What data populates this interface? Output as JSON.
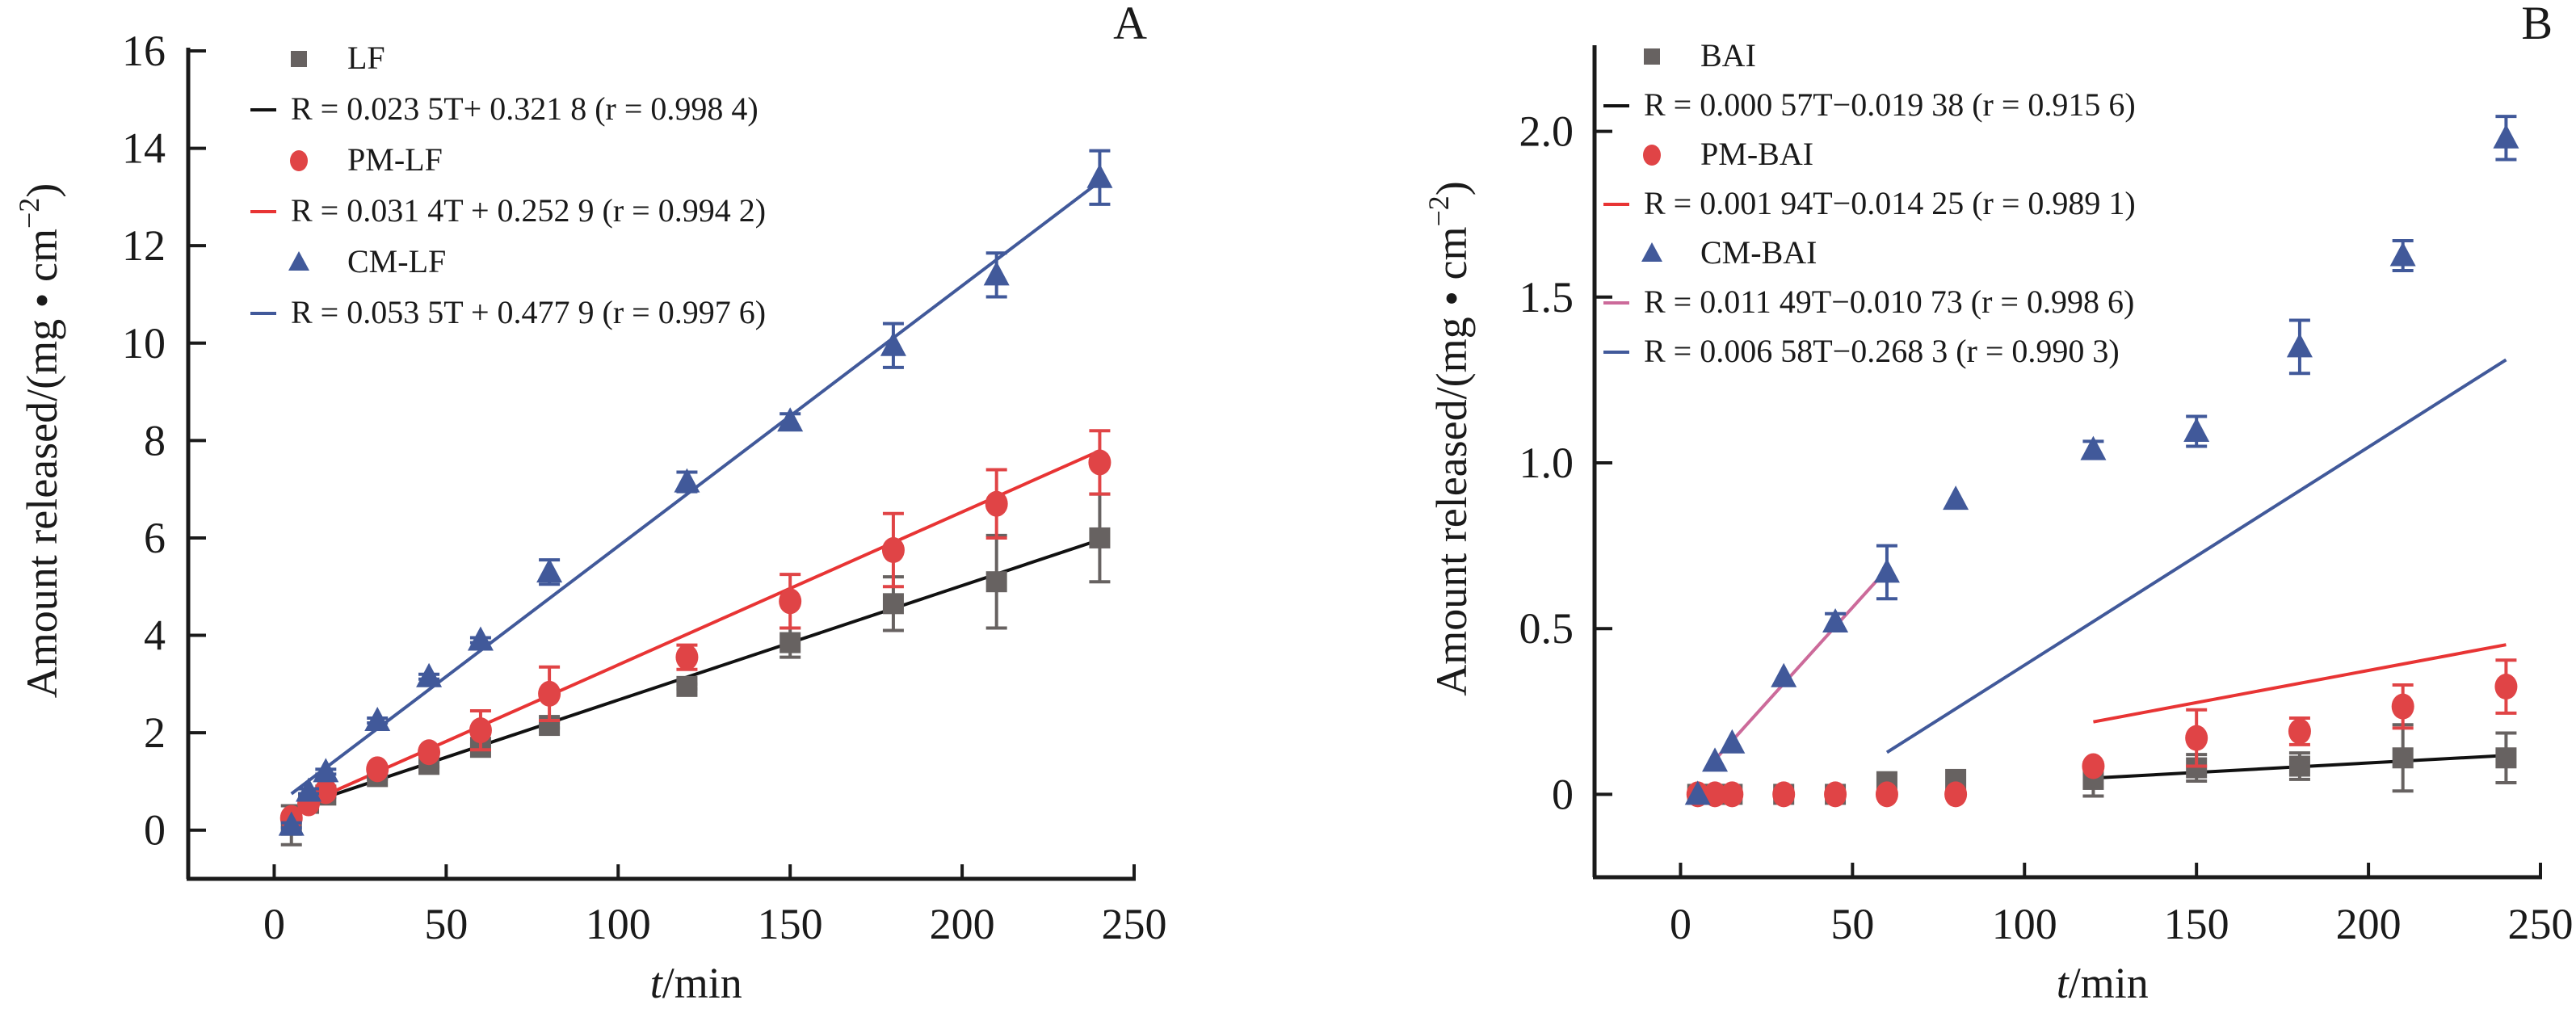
{
  "chart_data": [
    {
      "panel_label": "A",
      "type": "scatter",
      "xlabel_italic": "t",
      "xlabel_rest": "/min",
      "ylabel": "Amount released/(mg • cm",
      "ylabel_sup": "−2",
      "ylabel_close": ")",
      "xlim": [
        -25,
        250
      ],
      "ylim": [
        -1,
        16
      ],
      "xticks": [
        0,
        50,
        100,
        150,
        200,
        250
      ],
      "yticks": [
        0,
        2,
        4,
        6,
        8,
        10,
        12,
        14,
        16
      ],
      "ytick_labels": [
        "0",
        "2",
        "4",
        "6",
        "8",
        "10",
        "12",
        "14",
        "16"
      ],
      "legend_position": "top-left",
      "legend": [
        {
          "kind": "marker",
          "marker": "square",
          "color": "#676261",
          "label": "LF"
        },
        {
          "kind": "line",
          "color": "#111111",
          "label": "R = 0.023 5T+ 0.321 8  (r = 0.998 4)"
        },
        {
          "kind": "marker",
          "marker": "circle",
          "color": "#e04446",
          "label": "PM-LF"
        },
        {
          "kind": "line",
          "color": "#e83434",
          "label": "R = 0.031 4T + 0.252 9 (r = 0.994 2)"
        },
        {
          "kind": "marker",
          "marker": "triangle",
          "color": "#41599a",
          "label": "CM-LF"
        },
        {
          "kind": "line",
          "color": "#41599a",
          "label": "R = 0.053 5T + 0.477 9 (r = 0.997 6)"
        }
      ],
      "series": [
        {
          "name": "LF",
          "marker": "square",
          "color": "#676261",
          "x": [
            5,
            10,
            15,
            30,
            45,
            60,
            80,
            120,
            150,
            180,
            210,
            240
          ],
          "y": [
            0.1,
            0.55,
            0.72,
            1.1,
            1.35,
            1.7,
            2.15,
            2.95,
            3.85,
            4.65,
            5.1,
            6.0
          ],
          "err": [
            0.4,
            0.05,
            0.05,
            0.05,
            0.05,
            0.05,
            0.05,
            0.05,
            0.3,
            0.55,
            0.95,
            0.9
          ]
        },
        {
          "name": "PM-LF",
          "marker": "circle",
          "color": "#e04446",
          "x": [
            5,
            10,
            15,
            30,
            45,
            60,
            80,
            120,
            150,
            180,
            210,
            240
          ],
          "y": [
            0.25,
            0.55,
            0.8,
            1.25,
            1.6,
            2.05,
            2.8,
            3.55,
            4.7,
            5.75,
            6.7,
            7.55
          ],
          "err": [
            0.05,
            0.05,
            0.05,
            0.05,
            0.05,
            0.4,
            0.55,
            0.25,
            0.55,
            0.75,
            0.7,
            0.65
          ]
        },
        {
          "name": "CM-LF",
          "marker": "triangle",
          "color": "#41599a",
          "x": [
            5,
            10,
            15,
            30,
            45,
            60,
            80,
            120,
            150,
            180,
            210,
            240
          ],
          "y": [
            0.1,
            0.8,
            1.2,
            2.25,
            3.15,
            3.9,
            5.3,
            7.15,
            8.4,
            9.95,
            11.4,
            13.4
          ],
          "err": [
            0.05,
            0.05,
            0.05,
            0.05,
            0.05,
            0.05,
            0.25,
            0.2,
            0.15,
            0.45,
            0.45,
            0.55
          ]
        }
      ],
      "fits": [
        {
          "name": "LF fit",
          "color": "#111111",
          "slope": 0.0235,
          "intercept": 0.3218,
          "x_range": [
            5,
            240
          ]
        },
        {
          "name": "PM-LF fit",
          "color": "#e83434",
          "slope": 0.0314,
          "intercept": 0.2529,
          "x_range": [
            5,
            240
          ]
        },
        {
          "name": "CM-LF fit",
          "color": "#41599a",
          "slope": 0.0535,
          "intercept": 0.4779,
          "x_range": [
            5,
            240
          ]
        }
      ]
    },
    {
      "panel_label": "B",
      "type": "scatter",
      "xlabel_italic": "t",
      "xlabel_rest": "/min",
      "ylabel": "Amount released/(mg • cm",
      "ylabel_sup": "−2",
      "ylabel_close": ")",
      "xlim": [
        -25,
        250
      ],
      "ylim": [
        -0.25,
        2.25
      ],
      "xticks": [
        0,
        50,
        100,
        150,
        200,
        250
      ],
      "yticks": [
        0,
        0.5,
        1.0,
        1.5,
        2.0
      ],
      "ytick_labels": [
        "0",
        "0.5",
        "1.0",
        "1.5",
        "2.0"
      ],
      "legend_position": "top-left",
      "legend": [
        {
          "kind": "marker",
          "marker": "square",
          "color": "#676261",
          "label": "BAI"
        },
        {
          "kind": "line",
          "color": "#111111",
          "label": "R = 0.000 57T−0.019 38 (r = 0.915 6)"
        },
        {
          "kind": "marker",
          "marker": "circle",
          "color": "#e04446",
          "label": "PM-BAI"
        },
        {
          "kind": "line",
          "color": "#e83434",
          "label": "R = 0.001 94T−0.014 25 (r = 0.989 1)"
        },
        {
          "kind": "marker",
          "marker": "triangle",
          "color": "#41599a",
          "label": "CM-BAI"
        },
        {
          "kind": "line",
          "color": "#cc6a9a",
          "label": "R = 0.011 49T−0.010 73 (r = 0.998 6)"
        },
        {
          "kind": "line",
          "color": "#41599a",
          "label": "R = 0.006 58T−0.268 3  (r = 0.990 3)"
        }
      ],
      "series": [
        {
          "name": "BAI",
          "marker": "square",
          "color": "#676261",
          "x": [
            5,
            10,
            15,
            30,
            45,
            60,
            80,
            120,
            150,
            180,
            210,
            240
          ],
          "y": [
            0,
            0,
            0,
            0,
            0,
            0.03,
            0.045,
            0.045,
            0.08,
            0.085,
            0.11,
            0.11
          ],
          "err": [
            0,
            0,
            0,
            0,
            0,
            0.035,
            0,
            0.05,
            0.04,
            0.04,
            0.1,
            0.075
          ]
        },
        {
          "name": "PM-BAI",
          "marker": "circle",
          "color": "#e04446",
          "x": [
            5,
            10,
            15,
            30,
            45,
            60,
            80,
            120,
            150,
            180,
            210,
            240
          ],
          "y": [
            0,
            0,
            0,
            0,
            0,
            0,
            0,
            0.085,
            0.17,
            0.19,
            0.265,
            0.325
          ],
          "err": [
            0,
            0,
            0,
            0,
            0,
            0,
            0,
            0.01,
            0.085,
            0.04,
            0.065,
            0.08
          ]
        },
        {
          "name": "CM-BAI",
          "marker": "triangle",
          "color": "#41599a",
          "x": [
            5,
            10,
            15,
            30,
            45,
            60,
            80,
            120,
            150,
            180,
            210,
            240
          ],
          "y": [
            0.0,
            0.1,
            0.155,
            0.355,
            0.52,
            0.67,
            0.89,
            1.04,
            1.095,
            1.35,
            1.625,
            1.98
          ],
          "err": [
            0,
            0,
            0,
            0,
            0.025,
            0.08,
            0,
            0.025,
            0.045,
            0.08,
            0.045,
            0.065
          ]
        }
      ],
      "fits": [
        {
          "name": "BAI fit",
          "color": "#111111",
          "slope": 0.00057,
          "intercept": -0.01938,
          "x_range": [
            120,
            240
          ]
        },
        {
          "name": "PM-BAI fit",
          "color": "#e83434",
          "slope": 0.00194,
          "intercept": -0.01425,
          "x_range": [
            120,
            240
          ]
        },
        {
          "name": "CM-BAI fit early",
          "color": "#cc6a9a",
          "slope": 0.01149,
          "intercept": -0.01073,
          "x_range": [
            10,
            60
          ]
        },
        {
          "name": "CM-BAI fit late",
          "color": "#41599a",
          "slope": 0.00658,
          "intercept": -0.2683,
          "x_range": [
            60,
            240
          ]
        }
      ]
    }
  ]
}
